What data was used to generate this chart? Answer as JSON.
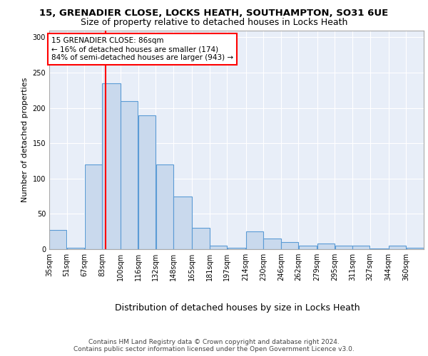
{
  "title1": "15, GRENADIER CLOSE, LOCKS HEATH, SOUTHAMPTON, SO31 6UE",
  "title2": "Size of property relative to detached houses in Locks Heath",
  "xlabel": "Distribution of detached houses by size in Locks Heath",
  "ylabel": "Number of detached properties",
  "footnote1": "Contains HM Land Registry data © Crown copyright and database right 2024.",
  "footnote2": "Contains public sector information licensed under the Open Government Licence v3.0.",
  "bar_color": "#c9d9ed",
  "bar_edge_color": "#5b9bd5",
  "red_line_x": 86,
  "annotation_text": "15 GRENADIER CLOSE: 86sqm\n← 16% of detached houses are smaller (174)\n84% of semi-detached houses are larger (943) →",
  "categories": [
    "35sqm",
    "51sqm",
    "67sqm",
    "83sqm",
    "100sqm",
    "116sqm",
    "132sqm",
    "148sqm",
    "165sqm",
    "181sqm",
    "197sqm",
    "214sqm",
    "230sqm",
    "246sqm",
    "262sqm",
    "279sqm",
    "295sqm",
    "311sqm",
    "327sqm",
    "344sqm",
    "360sqm"
  ],
  "values": [
    27,
    2,
    120,
    235,
    210,
    190,
    120,
    75,
    30,
    5,
    2,
    25,
    15,
    10,
    5,
    8,
    5,
    5,
    1,
    5,
    2
  ],
  "bin_edges": [
    35,
    51,
    67,
    83,
    100,
    116,
    132,
    148,
    165,
    181,
    197,
    214,
    230,
    246,
    262,
    279,
    295,
    311,
    327,
    344,
    360,
    376
  ],
  "ylim": [
    0,
    310
  ],
  "yticks": [
    0,
    50,
    100,
    150,
    200,
    250,
    300
  ],
  "background_color": "#e8eef8",
  "title1_fontsize": 9.5,
  "title2_fontsize": 9,
  "tick_fontsize": 7,
  "ylabel_fontsize": 8,
  "xlabel_fontsize": 9,
  "footnote_fontsize": 6.5
}
